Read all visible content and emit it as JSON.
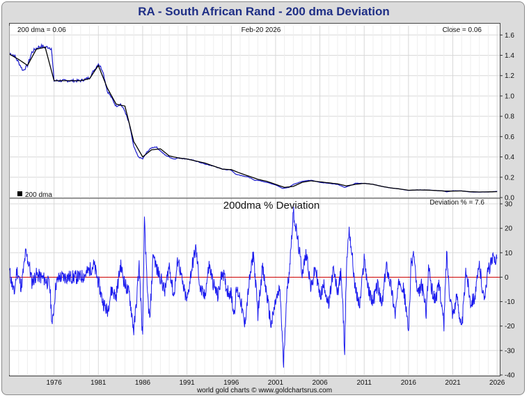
{
  "title": "RA  -  South African Rand - 200 dma Deviation",
  "footer": "world gold charts © www.goldchartsrus.com",
  "chart_data": [
    {
      "type": "line",
      "panel": "price",
      "header_left": "200 dma =   0.06",
      "header_center": "Feb-20  2026",
      "header_right": "Close = 0.06",
      "legend": "200 dma",
      "legend_placement": "bottom-left",
      "ylim": [
        0,
        1.65
      ],
      "yticks": [
        "1.6",
        "1.4",
        "1.2",
        "1.0",
        "0.8",
        "0.6",
        "0.4",
        "0.2",
        "0.0"
      ],
      "xlim": [
        1971.0,
        2026.3
      ],
      "colors": {
        "price": "#1a1acc",
        "dma": "#000000"
      },
      "series": [
        {
          "name": "Close",
          "x": [
            1971.0,
            1971.5,
            1972.0,
            1972.5,
            1973.0,
            1973.5,
            1974.0,
            1974.5,
            1975.0,
            1975.4,
            1975.7,
            1976.0,
            1977.0,
            1978.0,
            1979.0,
            1980.0,
            1980.5,
            1981.0,
            1981.5,
            1982.0,
            1982.5,
            1983.0,
            1983.5,
            1984.0,
            1984.5,
            1985.0,
            1985.5,
            1986.0,
            1986.5,
            1987.0,
            1987.5,
            1988.0,
            1988.5,
            1989.0,
            1989.5,
            1990.0,
            1991.0,
            1992.0,
            1993.0,
            1994.0,
            1995.0,
            1996.0,
            1996.5,
            1997.0,
            1998.0,
            1998.6,
            1999.0,
            2000.0,
            2001.0,
            2001.8,
            2002.5,
            2003.0,
            2004.0,
            2005.0,
            2006.0,
            2007.0,
            2008.0,
            2008.8,
            2009.5,
            2010.0,
            2011.0,
            2012.0,
            2013.0,
            2014.0,
            2015.0,
            2016.0,
            2017.0,
            2018.0,
            2019.0,
            2020.0,
            2020.3,
            2021.0,
            2022.0,
            2023.0,
            2024.0,
            2025.0,
            2026.0
          ],
          "values": [
            1.42,
            1.4,
            1.33,
            1.25,
            1.3,
            1.43,
            1.47,
            1.49,
            1.48,
            1.48,
            1.47,
            1.15,
            1.15,
            1.15,
            1.15,
            1.18,
            1.25,
            1.32,
            1.25,
            1.05,
            0.98,
            0.9,
            0.92,
            0.85,
            0.72,
            0.5,
            0.4,
            0.38,
            0.45,
            0.49,
            0.5,
            0.46,
            0.42,
            0.4,
            0.38,
            0.39,
            0.38,
            0.36,
            0.33,
            0.31,
            0.28,
            0.27,
            0.23,
            0.22,
            0.2,
            0.17,
            0.17,
            0.15,
            0.125,
            0.09,
            0.1,
            0.13,
            0.16,
            0.17,
            0.15,
            0.14,
            0.13,
            0.1,
            0.12,
            0.14,
            0.14,
            0.13,
            0.11,
            0.095,
            0.085,
            0.07,
            0.075,
            0.075,
            0.07,
            0.065,
            0.056,
            0.067,
            0.066,
            0.055,
            0.054,
            0.055,
            0.061
          ]
        },
        {
          "name": "200 dma",
          "x": [
            1971.0,
            1972.0,
            1973.0,
            1974.0,
            1975.0,
            1976.0,
            1977.0,
            1978.0,
            1979.0,
            1980.0,
            1981.0,
            1982.0,
            1983.0,
            1984.0,
            1985.0,
            1986.0,
            1987.0,
            1988.0,
            1989.0,
            1990.0,
            1991.0,
            1992.0,
            1993.0,
            1994.0,
            1995.0,
            1996.0,
            1997.0,
            1998.0,
            1999.0,
            2000.0,
            2001.0,
            2002.0,
            2003.0,
            2004.0,
            2005.0,
            2006.0,
            2007.0,
            2008.0,
            2009.0,
            2010.0,
            2011.0,
            2012.0,
            2013.0,
            2014.0,
            2015.0,
            2016.0,
            2017.0,
            2018.0,
            2019.0,
            2020.0,
            2021.0,
            2022.0,
            2023.0,
            2024.0,
            2025.0,
            2026.0
          ],
          "values": [
            1.41,
            1.36,
            1.3,
            1.46,
            1.48,
            1.15,
            1.15,
            1.15,
            1.15,
            1.17,
            1.3,
            1.08,
            0.92,
            0.9,
            0.55,
            0.4,
            0.47,
            0.48,
            0.41,
            0.39,
            0.38,
            0.36,
            0.34,
            0.31,
            0.28,
            0.275,
            0.24,
            0.21,
            0.18,
            0.16,
            0.13,
            0.1,
            0.11,
            0.15,
            0.165,
            0.155,
            0.145,
            0.135,
            0.115,
            0.13,
            0.14,
            0.13,
            0.11,
            0.095,
            0.085,
            0.072,
            0.075,
            0.074,
            0.07,
            0.064,
            0.064,
            0.065,
            0.057,
            0.055,
            0.056,
            0.058
          ]
        }
      ]
    },
    {
      "type": "line",
      "panel": "deviation",
      "title": "200dma  %  Deviation",
      "header_right": "Deviation % = 7.6",
      "ylim": [
        -40,
        32
      ],
      "yticks": [
        "30",
        "20",
        "10",
        "0",
        "-10",
        "-20",
        "-30",
        "-40"
      ],
      "xticks": [
        "1976",
        "1981",
        "1986",
        "1991",
        "1996",
        "2001",
        "2006",
        "2011",
        "2016",
        "2021",
        "2026"
      ],
      "xlim": [
        1971.0,
        2026.3
      ],
      "colors": {
        "deviation": "#1a1aee",
        "zero": "#cc0000"
      },
      "anchors": {
        "x": [
          1971.0,
          1971.5,
          1971.8,
          1972.3,
          1972.8,
          1973.2,
          1973.5,
          1974.0,
          1974.5,
          1975.0,
          1975.5,
          1975.8,
          1976.2,
          1976.6,
          1977.0,
          1978.0,
          1979.0,
          1979.5,
          1980.0,
          1980.5,
          1981.0,
          1981.5,
          1982.0,
          1982.5,
          1983.0,
          1983.5,
          1984.0,
          1984.5,
          1985.0,
          1985.3,
          1985.6,
          1986.0,
          1986.2,
          1986.5,
          1986.8,
          1987.2,
          1987.6,
          1988.0,
          1988.5,
          1989.0,
          1989.5,
          1990.0,
          1990.5,
          1991.0,
          1991.5,
          1992.0,
          1992.5,
          1993.0,
          1993.5,
          1994.0,
          1994.5,
          1995.0,
          1995.5,
          1996.0,
          1996.3,
          1996.6,
          1997.0,
          1997.5,
          1998.0,
          1998.5,
          1999.0,
          1999.5,
          2000.0,
          2000.5,
          2001.0,
          2001.5,
          2001.9,
          2002.2,
          2002.6,
          2003.0,
          2003.5,
          2004.0,
          2004.5,
          2005.0,
          2005.5,
          2006.0,
          2006.5,
          2007.0,
          2007.5,
          2008.0,
          2008.4,
          2008.8,
          2009.0,
          2009.3,
          2009.6,
          2010.0,
          2010.5,
          2011.0,
          2011.5,
          2012.0,
          2012.5,
          2013.0,
          2013.5,
          2014.0,
          2014.5,
          2015.0,
          2015.5,
          2016.0,
          2016.3,
          2016.6,
          2017.0,
          2017.5,
          2018.0,
          2018.3,
          2018.6,
          2019.0,
          2019.5,
          2020.0,
          2020.3,
          2020.6,
          2021.0,
          2021.5,
          2022.0,
          2022.5,
          2023.0,
          2023.5,
          2024.0,
          2024.5,
          2025.0,
          2025.5,
          2026.0
        ],
        "values": [
          2,
          -7,
          3,
          -4,
          10,
          5,
          -2,
          1,
          0,
          -1,
          -3,
          -20,
          -3,
          0,
          0,
          0,
          0,
          1,
          3,
          5,
          -2,
          -10,
          -14,
          -5,
          -8,
          5,
          -3,
          -7,
          -22,
          -10,
          5,
          -25,
          25,
          -5,
          -18,
          10,
          3,
          0,
          -6,
          5,
          -8,
          8,
          -3,
          -10,
          3,
          12,
          -5,
          -8,
          5,
          -3,
          -8,
          3,
          -5,
          -7,
          -15,
          -5,
          -8,
          -20,
          -3,
          10,
          -15,
          4,
          -7,
          -20,
          -10,
          -5,
          -36,
          -10,
          5,
          27,
          15,
          2,
          10,
          -5,
          4,
          -8,
          -3,
          -12,
          3,
          -6,
          2,
          -30,
          5,
          20,
          10,
          -5,
          -12,
          8,
          -6,
          -10,
          -3,
          -12,
          5,
          -3,
          -15,
          0,
          -6,
          -22,
          5,
          10,
          -8,
          -3,
          -14,
          5,
          -5,
          -9,
          -3,
          -20,
          10,
          -5,
          -15,
          -8,
          -22,
          3,
          -10,
          -8,
          5,
          -9,
          3,
          7,
          8
        ]
      }
    }
  ]
}
